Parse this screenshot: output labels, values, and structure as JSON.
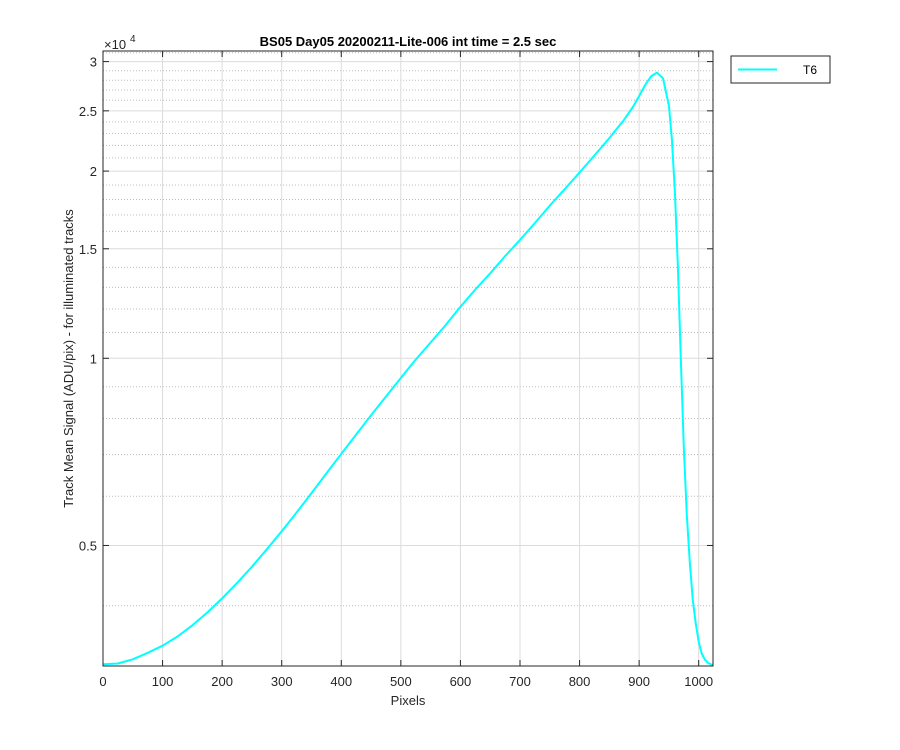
{
  "chart_data": {
    "type": "line",
    "title": "BS05 Day05 20200211-Lite-006 int time = 2.5 sec",
    "xlabel": "Pixels",
    "ylabel": "Track Mean Signal (ADU/pix) - for illuminated tracks",
    "exponent_label": "×10",
    "exponent_power": "4",
    "xlim": [
      0,
      1024
    ],
    "ylim": [
      3200,
      31200
    ],
    "yscale": "log",
    "grid": true,
    "minor_grid": true,
    "legend_position": "outside-top-right",
    "x_ticks": [
      0,
      100,
      200,
      300,
      400,
      500,
      600,
      700,
      800,
      900,
      1000
    ],
    "x_tick_labels": [
      "0",
      "100",
      "200",
      "300",
      "400",
      "500",
      "600",
      "700",
      "800",
      "900",
      "1000"
    ],
    "y_ticks": [
      5000,
      10000,
      15000,
      20000,
      25000,
      30000
    ],
    "y_tick_labels": [
      "0.5",
      "1",
      "1.5",
      "2",
      "2.5",
      "3"
    ],
    "series": [
      {
        "name": "T6",
        "color": "#00ffff",
        "x": [
          0,
          25,
          50,
          75,
          100,
          125,
          150,
          175,
          200,
          225,
          250,
          275,
          300,
          325,
          350,
          375,
          400,
          425,
          450,
          475,
          500,
          525,
          550,
          575,
          600,
          625,
          650,
          675,
          700,
          725,
          750,
          775,
          800,
          825,
          850,
          875,
          890,
          900,
          910,
          920,
          930,
          940,
          950,
          955,
          960,
          965,
          970,
          975,
          980,
          985,
          990,
          995,
          1000,
          1005,
          1010,
          1015,
          1020,
          1024
        ],
        "values": [
          3220,
          3230,
          3280,
          3360,
          3450,
          3570,
          3720,
          3900,
          4110,
          4350,
          4620,
          4930,
          5270,
          5650,
          6070,
          6530,
          7020,
          7540,
          8100,
          8680,
          9300,
          9950,
          10600,
          11300,
          12100,
          12900,
          13700,
          14600,
          15500,
          16500,
          17600,
          18700,
          19900,
          21200,
          22600,
          24200,
          25400,
          26400,
          27500,
          28400,
          28800,
          28200,
          25500,
          22500,
          18500,
          14000,
          10000,
          7200,
          5600,
          4700,
          4100,
          3750,
          3500,
          3350,
          3280,
          3240,
          3220,
          3215
        ]
      }
    ]
  }
}
